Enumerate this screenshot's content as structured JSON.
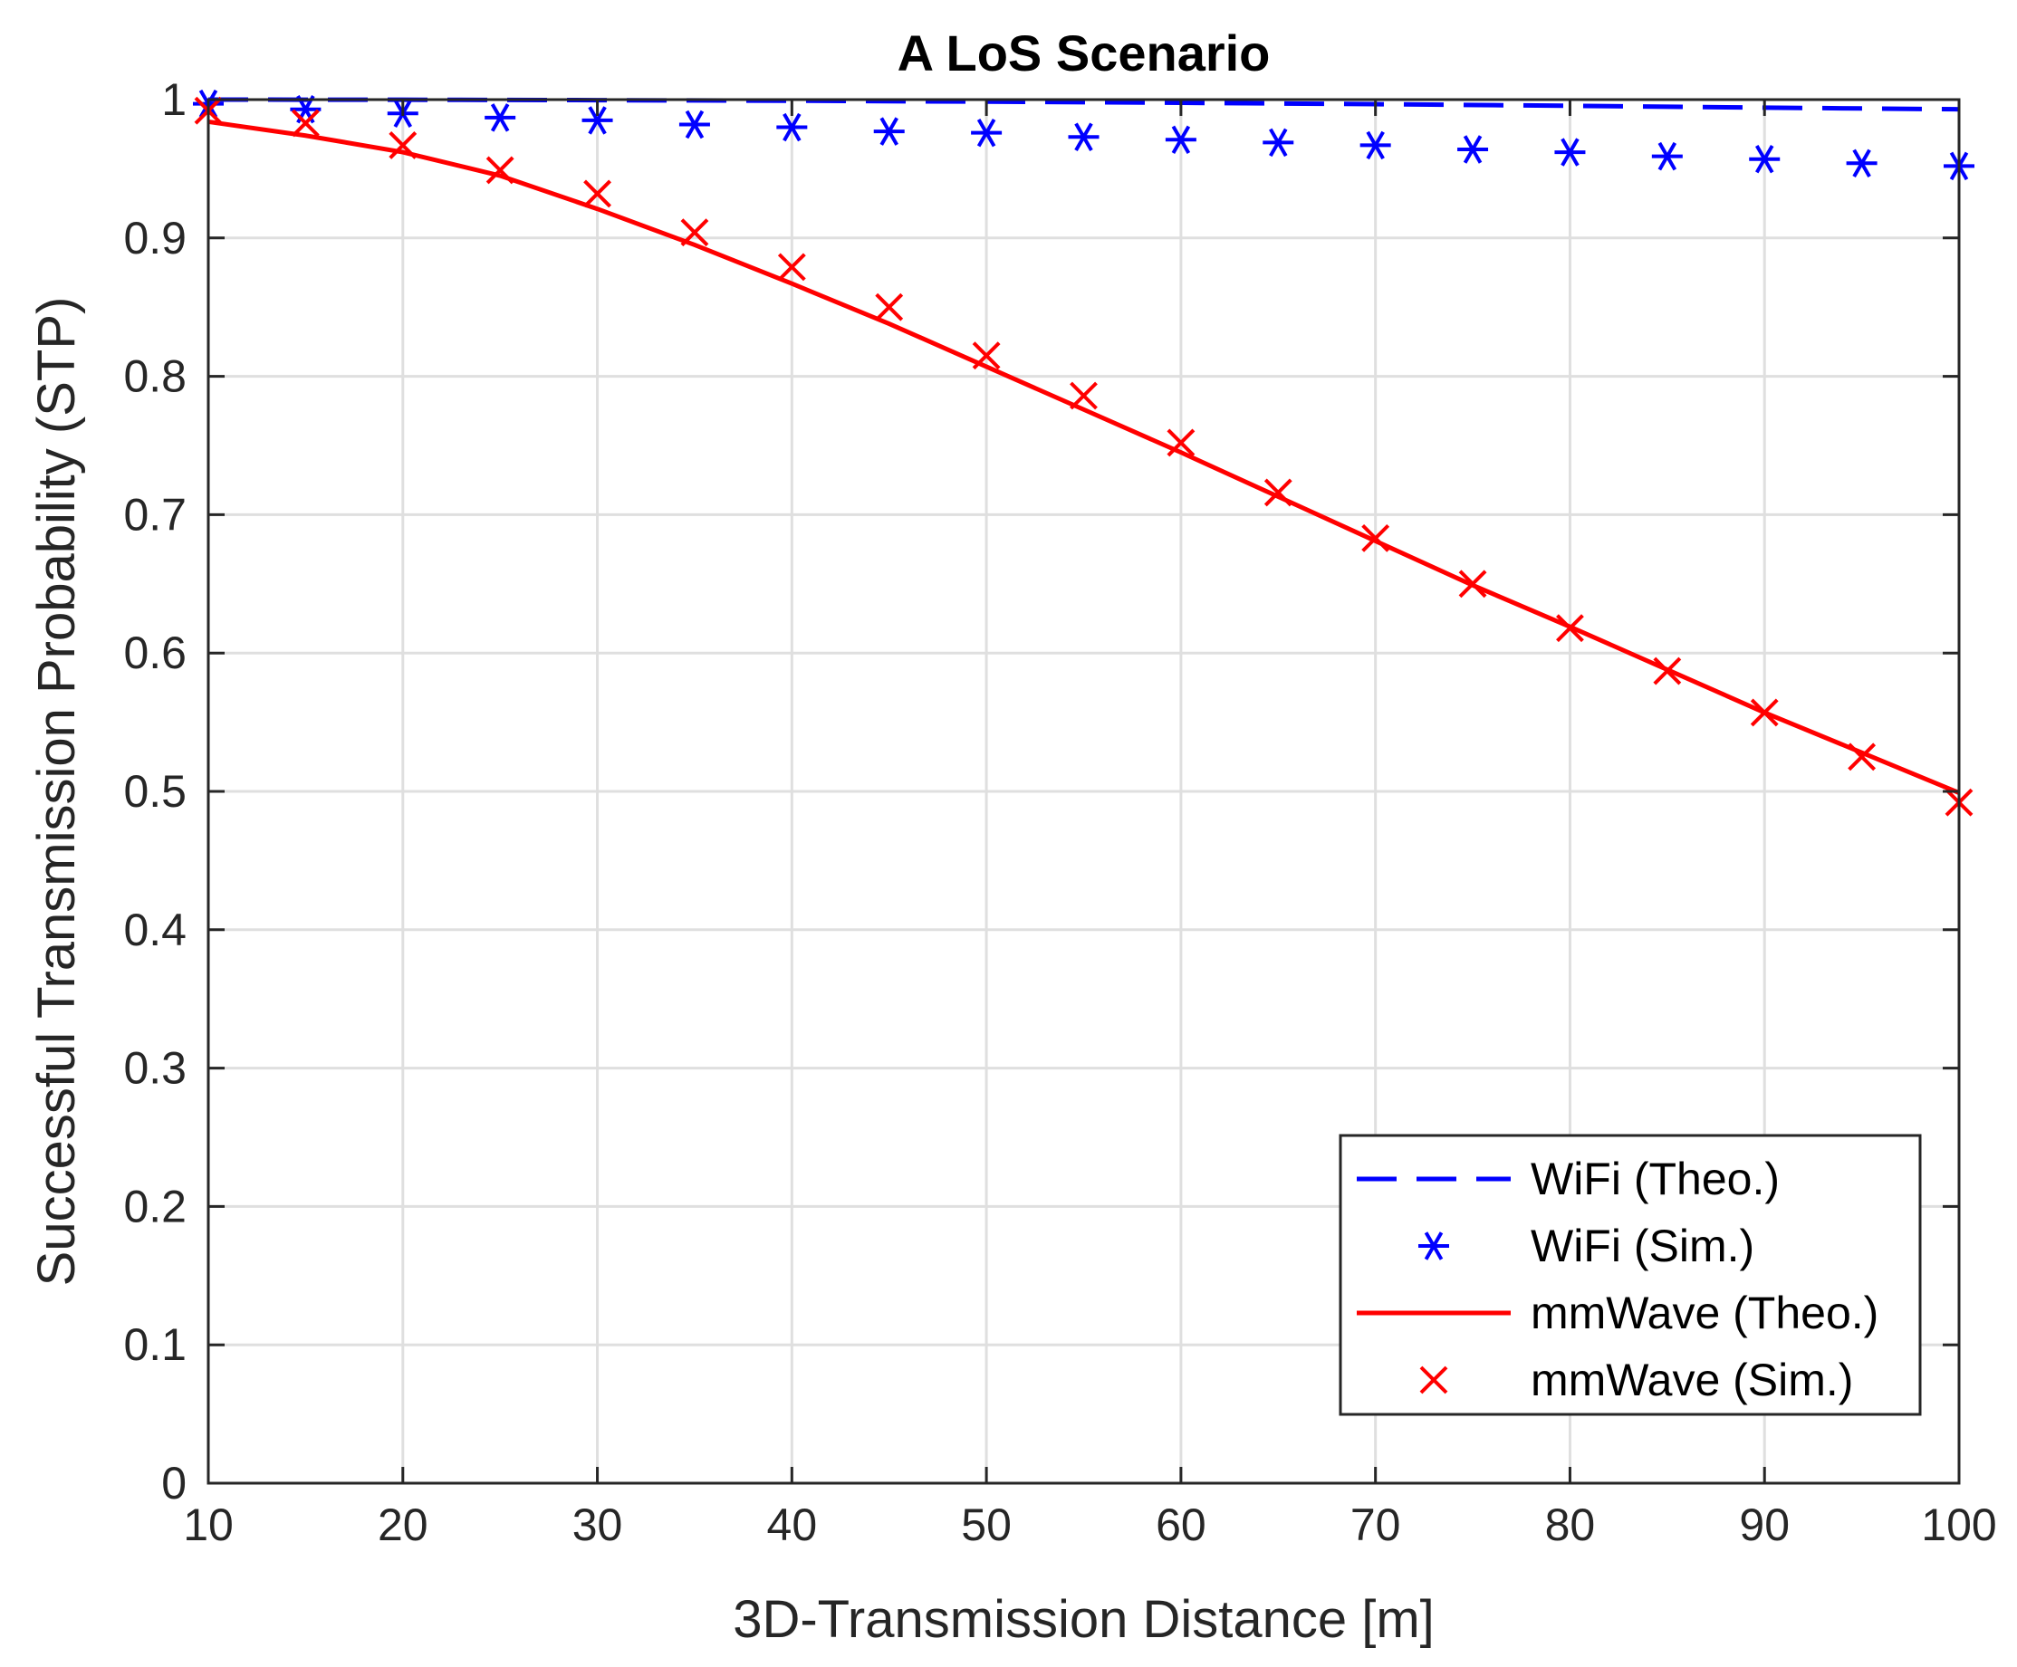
{
  "chart_data": {
    "type": "line",
    "title": "A LoS Scenario",
    "xlabel": "3D-Transmission Distance [m]",
    "ylabel": "Successful Transmission Probability (STP)",
    "xlim": [
      10,
      100
    ],
    "ylim": [
      0,
      1
    ],
    "xticks": [
      10,
      20,
      30,
      40,
      50,
      60,
      70,
      80,
      90,
      100
    ],
    "yticks": [
      0,
      0.1,
      0.2,
      0.3,
      0.4,
      0.5,
      0.6,
      0.7,
      0.8,
      0.9,
      1
    ],
    "ytick_labels": [
      "0",
      "0.1",
      "0.2",
      "0.3",
      "0.4",
      "0.5",
      "0.6",
      "0.7",
      "0.8",
      "0.9",
      "1"
    ],
    "grid": true,
    "legend_position": "bottom-right",
    "series": [
      {
        "name": "WiFi (Theo.)",
        "style": "dashed-line",
        "color": "#0000ff",
        "x": [
          10,
          20,
          30,
          40,
          50,
          60,
          70,
          80,
          90,
          100
        ],
        "values": [
          1.0,
          0.9999,
          0.9996,
          0.9992,
          0.9985,
          0.9977,
          0.9967,
          0.9955,
          0.9942,
          0.993
        ]
      },
      {
        "name": "WiFi (Sim.)",
        "style": "asterisk-marker",
        "color": "#0000ff",
        "x": [
          10,
          15,
          20,
          25,
          30,
          35,
          40,
          45,
          50,
          55,
          60,
          65,
          70,
          75,
          80,
          85,
          90,
          95,
          100
        ],
        "values": [
          0.997,
          0.993,
          0.99,
          0.987,
          0.985,
          0.982,
          0.98,
          0.977,
          0.976,
          0.973,
          0.971,
          0.969,
          0.967,
          0.964,
          0.962,
          0.959,
          0.957,
          0.954,
          0.952
        ]
      },
      {
        "name": "mmWave (Theo.)",
        "style": "solid-line",
        "color": "#ff0000",
        "x": [
          10,
          15,
          20,
          25,
          30,
          35,
          40,
          45,
          50,
          55,
          60,
          65,
          70,
          75,
          80,
          85,
          90,
          95,
          100
        ],
        "values": [
          0.984,
          0.974,
          0.962,
          0.945,
          0.921,
          0.895,
          0.867,
          0.838,
          0.807,
          0.776,
          0.745,
          0.713,
          0.681,
          0.649,
          0.619,
          0.588,
          0.557,
          0.528,
          0.499
        ]
      },
      {
        "name": "mmWave (Sim.)",
        "style": "x-marker",
        "color": "#ff0000",
        "x": [
          10,
          15,
          20,
          25,
          30,
          35,
          40,
          45,
          50,
          55,
          60,
          65,
          70,
          75,
          80,
          85,
          90,
          95,
          100
        ],
        "values": [
          0.992,
          0.983,
          0.967,
          0.949,
          0.932,
          0.904,
          0.879,
          0.85,
          0.815,
          0.786,
          0.752,
          0.716,
          0.683,
          0.65,
          0.618,
          0.587,
          0.557,
          0.525,
          0.492
        ]
      }
    ]
  }
}
